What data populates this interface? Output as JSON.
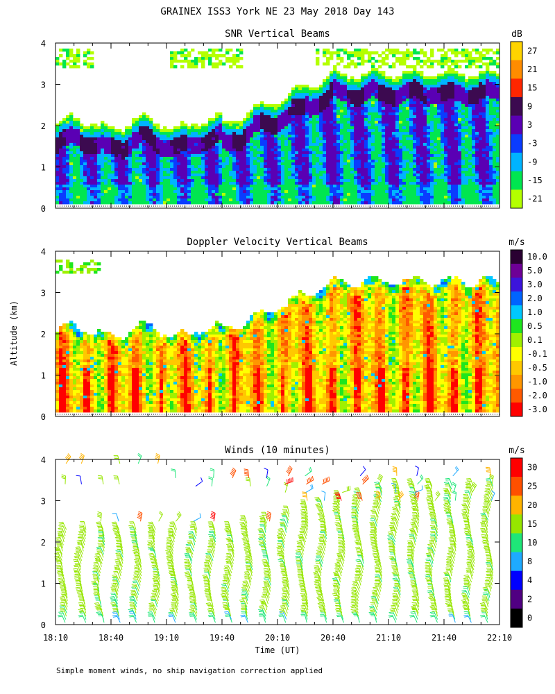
{
  "figure": {
    "title": "GRAINEX ISS3 York NE  23 May 2018 Day 143",
    "footnote": "Simple moment winds, no ship navigation correction applied",
    "shared_ylabel": "Altitude (km)",
    "xlabel": "Time (UT)",
    "background": "#ffffff"
  },
  "chart_data": [
    {
      "type": "heatmap",
      "title": "SNR Vertical Beams",
      "xlabel": "",
      "ylabel": "",
      "x_ticks": [],
      "y_ticks": [
        "0",
        "1",
        "2",
        "3",
        "4"
      ],
      "ylim": [
        0,
        4
      ],
      "xlim": [
        "18:10",
        "22:10"
      ],
      "colorbar": {
        "unit": "dB",
        "labels": [
          "27",
          "21",
          "15",
          "9",
          "3",
          "-3",
          "-9",
          "-15",
          "-21"
        ],
        "colors": [
          "#ffd400",
          "#ff8c00",
          "#ff2600",
          "#3c0a50",
          "#5a00b4",
          "#0a3cff",
          "#00b4ff",
          "#00e650",
          "#b4ff00"
        ]
      },
      "description_values": {
        "layer_top_km_start": 2.1,
        "layer_top_km_end": 3.3,
        "upper_patch_km": [
          3.5,
          3.9
        ]
      }
    },
    {
      "type": "heatmap",
      "title": "Doppler Velocity Vertical Beams",
      "xlabel": "",
      "ylabel": "",
      "x_ticks": [],
      "y_ticks": [
        "0",
        "1",
        "2",
        "3",
        "4"
      ],
      "ylim": [
        0,
        4
      ],
      "xlim": [
        "18:10",
        "22:10"
      ],
      "colorbar": {
        "unit": "m/s",
        "labels": [
          "10.0",
          "5.0",
          "3.0",
          "2.0",
          "1.0",
          "0.5",
          "0.1",
          "-0.1",
          "-0.5",
          "-1.0",
          "-2.0",
          "-3.0"
        ],
        "colors": [
          "#2a0032",
          "#6e0096",
          "#3c14dc",
          "#0064ff",
          "#00c8ff",
          "#1ee61e",
          "#a0f000",
          "#ffff00",
          "#ffc800",
          "#ff9600",
          "#ff5a00",
          "#ff0000"
        ]
      },
      "description_values": {
        "layer_top_km_start": 2.1,
        "layer_top_km_end": 3.3
      }
    },
    {
      "type": "scatter",
      "title": "Winds (10 minutes)",
      "xlabel": "Time (UT)",
      "ylabel": "",
      "x_ticks": [
        "18:10",
        "18:40",
        "19:10",
        "19:40",
        "20:10",
        "20:40",
        "21:10",
        "21:40",
        "22:10"
      ],
      "y_ticks": [
        "0",
        "1",
        "2",
        "3",
        "4"
      ],
      "ylim": [
        0,
        4
      ],
      "xlim": [
        "18:10",
        "22:10"
      ],
      "glyph": "wind barbs",
      "profile_times_min_after_1810": [
        5,
        15,
        25,
        35,
        45,
        55,
        65,
        75,
        85,
        95,
        105,
        115,
        125,
        135,
        145,
        155,
        165,
        175,
        185,
        195,
        205,
        215,
        225,
        235
      ],
      "lower_layer_speed_ms": 13,
      "upper_layer_speed_ms": [
        4,
        30
      ],
      "colorbar": {
        "unit": "m/s",
        "labels": [
          "30",
          "25",
          "20",
          "15",
          "10",
          "8",
          "4",
          "2",
          "0"
        ],
        "colors": [
          "#ff0000",
          "#ff5000",
          "#ffb400",
          "#96e600",
          "#1ee678",
          "#1eaaff",
          "#0000ff",
          "#500082",
          "#000000"
        ]
      }
    }
  ]
}
